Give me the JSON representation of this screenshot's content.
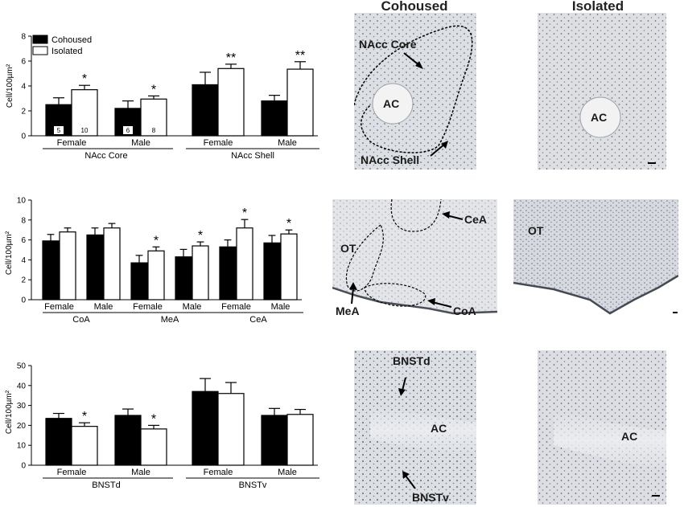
{
  "column_headers": {
    "cohoused": "Cohoused",
    "isolated": "Isolated"
  },
  "chart_data": [
    {
      "type": "bar",
      "ylabel": "Cell/100µm²",
      "ylim": [
        0,
        8
      ],
      "yticks": [
        0,
        2,
        4,
        6,
        8
      ],
      "legend": {
        "position": "top-left",
        "entries": [
          "Cohoused",
          "Isolated"
        ]
      },
      "series": [
        {
          "name": "Cohoused",
          "color": "#000000"
        },
        {
          "name": "Isolated",
          "color": "#ffffff"
        }
      ],
      "groups": [
        {
          "label": "NAcc Core",
          "categories": [
            {
              "label": "Female",
              "cohoused": 2.5,
              "cohoused_err": 0.55,
              "isolated": 3.7,
              "isolated_err": 0.35,
              "sig": "*",
              "n_cohoused": "5",
              "n_isolated": "10"
            },
            {
              "label": "Male",
              "cohoused": 2.2,
              "cohoused_err": 0.6,
              "isolated": 2.95,
              "isolated_err": 0.25,
              "sig": "*",
              "n_cohoused": "6",
              "n_isolated": "8"
            }
          ]
        },
        {
          "label": "NAcc Shell",
          "categories": [
            {
              "label": "Female",
              "cohoused": 4.1,
              "cohoused_err": 1.0,
              "isolated": 5.4,
              "isolated_err": 0.35,
              "sig": "**"
            },
            {
              "label": "Male",
              "cohoused": 2.8,
              "cohoused_err": 0.45,
              "isolated": 5.35,
              "isolated_err": 0.6,
              "sig": "**"
            }
          ]
        }
      ]
    },
    {
      "type": "bar",
      "ylabel": "Cell/100µm²",
      "ylim": [
        0,
        10
      ],
      "yticks": [
        0,
        2,
        4,
        6,
        8,
        10
      ],
      "series": [
        {
          "name": "Cohoused",
          "color": "#000000"
        },
        {
          "name": "Isolated",
          "color": "#ffffff"
        }
      ],
      "groups": [
        {
          "label": "CoA",
          "categories": [
            {
              "label": "Female",
              "cohoused": 5.9,
              "cohoused_err": 0.65,
              "isolated": 6.8,
              "isolated_err": 0.4,
              "sig": ""
            },
            {
              "label": "Male",
              "cohoused": 6.5,
              "cohoused_err": 0.7,
              "isolated": 7.2,
              "isolated_err": 0.45,
              "sig": ""
            }
          ]
        },
        {
          "label": "MeA",
          "categories": [
            {
              "label": "Female",
              "cohoused": 3.7,
              "cohoused_err": 0.75,
              "isolated": 4.9,
              "isolated_err": 0.4,
              "sig": "*"
            },
            {
              "label": "Male",
              "cohoused": 4.3,
              "cohoused_err": 0.75,
              "isolated": 5.4,
              "isolated_err": 0.4,
              "sig": "*"
            }
          ]
        },
        {
          "label": "CeA",
          "categories": [
            {
              "label": "Female",
              "cohoused": 5.3,
              "cohoused_err": 0.7,
              "isolated": 7.2,
              "isolated_err": 0.85,
              "sig": "*"
            },
            {
              "label": "Male",
              "cohoused": 5.7,
              "cohoused_err": 0.75,
              "isolated": 6.6,
              "isolated_err": 0.4,
              "sig": "*"
            }
          ]
        }
      ]
    },
    {
      "type": "bar",
      "ylabel": "Cell/100µm²",
      "ylim": [
        0,
        50
      ],
      "yticks": [
        0,
        10,
        20,
        30,
        40,
        50
      ],
      "series": [
        {
          "name": "Cohoused",
          "color": "#000000"
        },
        {
          "name": "Isolated",
          "color": "#ffffff"
        }
      ],
      "groups": [
        {
          "label": "BNSTd",
          "categories": [
            {
              "label": "Female",
              "cohoused": 23.5,
              "cohoused_err": 2.5,
              "isolated": 19.5,
              "isolated_err": 1.8,
              "sig": "*"
            },
            {
              "label": "Male",
              "cohoused": 25.0,
              "cohoused_err": 3.2,
              "isolated": 18.2,
              "isolated_err": 1.8,
              "sig": "*"
            }
          ]
        },
        {
          "label": "BNSTv",
          "categories": [
            {
              "label": "Female",
              "cohoused": 37.0,
              "cohoused_err": 6.5,
              "isolated": 36.0,
              "isolated_err": 5.5,
              "sig": ""
            },
            {
              "label": "Male",
              "cohoused": 25.0,
              "cohoused_err": 3.5,
              "isolated": 25.5,
              "isolated_err": 2.5,
              "sig": ""
            }
          ]
        }
      ]
    }
  ],
  "micrographs": [
    {
      "labels": [
        "NAcc Core",
        "AC",
        "NAcc Shell"
      ]
    },
    {
      "labels": [
        "AC"
      ]
    },
    {
      "labels": [
        "CeA",
        "OT",
        "MeA",
        "CoA"
      ]
    },
    {
      "labels": [
        "OT"
      ]
    },
    {
      "labels": [
        "BNSTd",
        "AC",
        "BNSTv"
      ]
    },
    {
      "labels": [
        "AC"
      ]
    }
  ]
}
